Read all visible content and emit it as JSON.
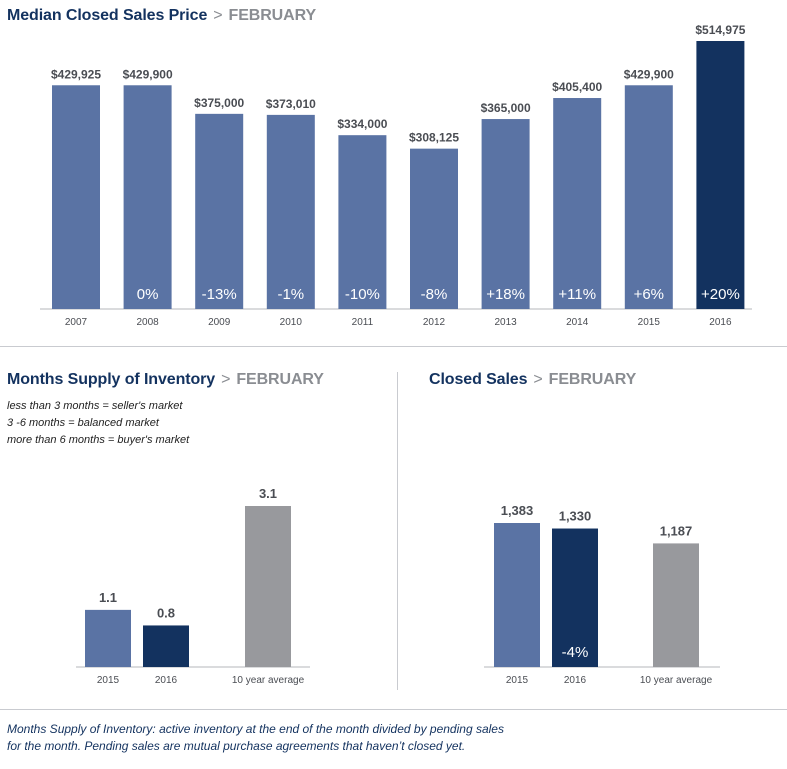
{
  "charts": {
    "price": {
      "title": "Median Closed Sales Price",
      "sep": ">",
      "month": "FEBRUARY"
    },
    "inventory": {
      "title": "Months Supply of Inventory",
      "sep": ">",
      "month": "FEBRUARY",
      "notes": [
        "less than 3 months = seller's market",
        "3 -6 months = balanced market",
        "more than 6 months = buyer's market"
      ]
    },
    "closed": {
      "title": "Closed Sales",
      "sep": ">",
      "month": "FEBRUARY"
    }
  },
  "footnote": {
    "line1": "Months Supply of Inventory: active inventory at the end of the month divided by pending sales",
    "line2": "for the month. Pending sales are mutual purchase agreements that haven’t closed yet."
  },
  "colors": {
    "bar": "#5a73a4",
    "highlight": "#13325f",
    "average": "#98999d",
    "axis": "#b5b7bb"
  },
  "chart_data": [
    {
      "type": "bar",
      "title": "Median Closed Sales Price",
      "categories": [
        "2007",
        "2008",
        "2009",
        "2010",
        "2011",
        "2012",
        "2013",
        "2014",
        "2015",
        "2016"
      ],
      "values": [
        429925,
        429900,
        375000,
        373010,
        334000,
        308125,
        365000,
        405400,
        429900,
        514975
      ],
      "value_labels": [
        "$429,925",
        "$429,900",
        "$375,000",
        "$373,010",
        "$334,000",
        "$308,125",
        "$365,000",
        "$405,400",
        "$429,900",
        "$514,975"
      ],
      "change_labels": [
        "",
        "0%",
        "-13%",
        "-1%",
        "-10%",
        "-8%",
        "+18%",
        "+11%",
        "+6%",
        "+20%"
      ],
      "highlight_index": 9,
      "ylim": [
        0,
        514975
      ],
      "grid": false
    },
    {
      "type": "bar",
      "title": "Months Supply of Inventory",
      "categories": [
        "2015",
        "2016",
        "10 year average"
      ],
      "values": [
        1.1,
        0.8,
        3.1
      ],
      "value_labels": [
        "1.1",
        "0.8",
        "3.1"
      ],
      "change_labels": [
        "",
        "",
        ""
      ],
      "ylim": [
        0,
        3.1
      ],
      "grid": false
    },
    {
      "type": "bar",
      "title": "Closed Sales",
      "categories": [
        "2015",
        "2016",
        "10 year average"
      ],
      "values": [
        1383,
        1330,
        1187
      ],
      "value_labels": [
        "1,383",
        "1,330",
        "1,187"
      ],
      "change_labels": [
        "",
        "-4%",
        ""
      ],
      "ylim": [
        0,
        1383
      ],
      "grid": false
    }
  ]
}
